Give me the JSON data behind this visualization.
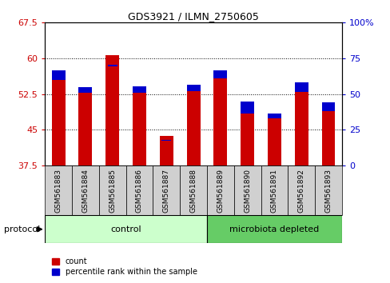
{
  "title": "GDS3921 / ILMN_2750605",
  "samples": [
    "GSM561883",
    "GSM561884",
    "GSM561885",
    "GSM561886",
    "GSM561887",
    "GSM561888",
    "GSM561889",
    "GSM561890",
    "GSM561891",
    "GSM561892",
    "GSM561893"
  ],
  "red_values": [
    55.5,
    52.8,
    60.7,
    52.8,
    43.8,
    53.2,
    55.8,
    48.5,
    47.5,
    53.0,
    49.0
  ],
  "blue_values": [
    57.5,
    54.0,
    58.5,
    54.2,
    42.8,
    54.5,
    57.5,
    51.0,
    48.5,
    55.0,
    50.8
  ],
  "ylim_left": [
    37.5,
    67.5
  ],
  "ylim_right": [
    0,
    100
  ],
  "yticks_left": [
    37.5,
    45,
    52.5,
    60,
    67.5
  ],
  "yticks_right": [
    0,
    25,
    50,
    75,
    100
  ],
  "n_control": 6,
  "n_micro": 5,
  "group_labels": [
    "control",
    "microbiota depleted"
  ],
  "bar_width": 0.5,
  "red_color": "#CC0000",
  "blue_color": "#0000CC",
  "control_bg": "#ccffcc",
  "microbiota_bg": "#66cc66",
  "legend_items": [
    "count",
    "percentile rank within the sample"
  ],
  "protocol_label": "protocol",
  "sample_box_color": "#d0d0d0",
  "title_fontsize": 9,
  "tick_fontsize": 8,
  "label_fontsize": 8
}
